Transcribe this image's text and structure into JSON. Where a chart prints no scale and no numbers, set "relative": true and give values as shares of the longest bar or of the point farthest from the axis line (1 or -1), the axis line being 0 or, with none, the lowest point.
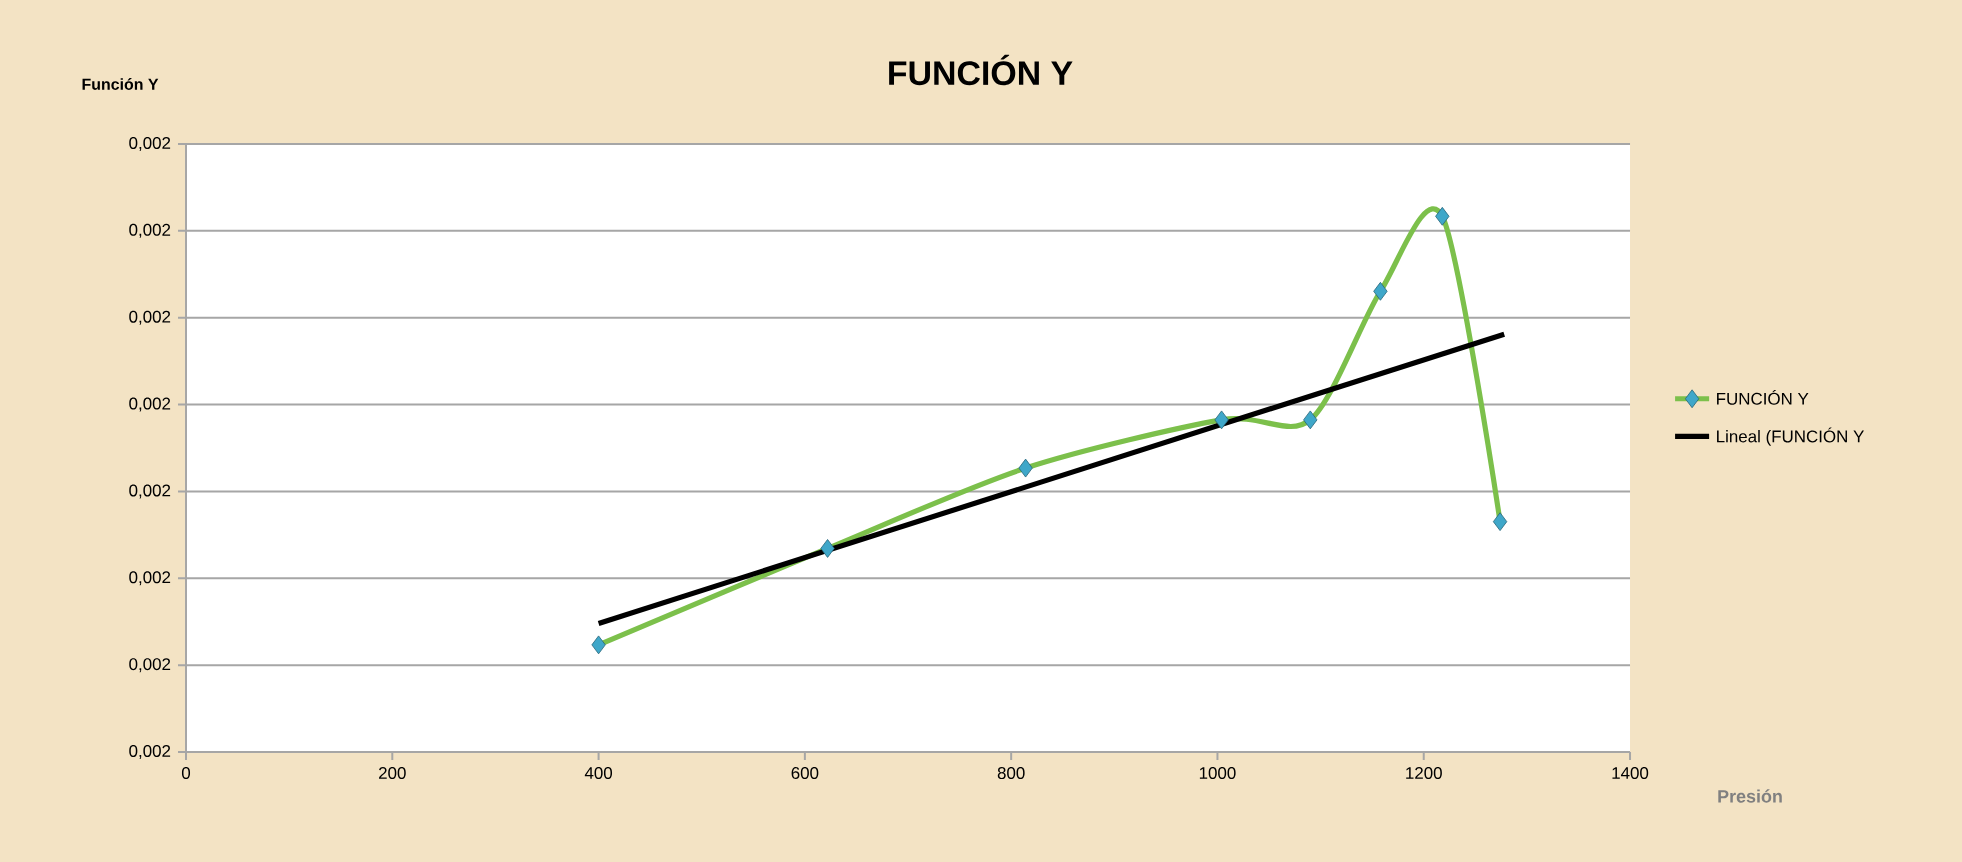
{
  "chart_data": {
    "type": "line",
    "title": "FUNCIÓN Y",
    "xlabel": "Presión",
    "xlim": [
      0,
      1400
    ],
    "xticks": [
      0,
      200,
      400,
      600,
      800,
      1000,
      1200,
      1400
    ],
    "relative": true,
    "annotations": [
      "Función Y",
      "0,002",
      "0,002",
      "0,002",
      "0,002",
      "0,002",
      "0,002",
      "0,002",
      "0,002"
    ],
    "grid": "y",
    "legend": "right",
    "marker": "diamond",
    "series": [
      {
        "name": "FUNCIÓN Y",
        "color": "#7cc04b",
        "x": [
          400,
          622,
          814,
          1004,
          1090,
          1158,
          1218,
          1274
        ],
        "values": [
          0.2,
          0.38,
          0.53,
          0.62,
          0.62,
          0.86,
          1,
          0.43
        ]
      },
      {
        "name": "Lineal (FUNCIÓN Y",
        "color": "#000000",
        "marker": "none",
        "x": [
          400,
          1278
        ],
        "values": [
          0.24,
          0.78
        ]
      }
    ]
  }
}
